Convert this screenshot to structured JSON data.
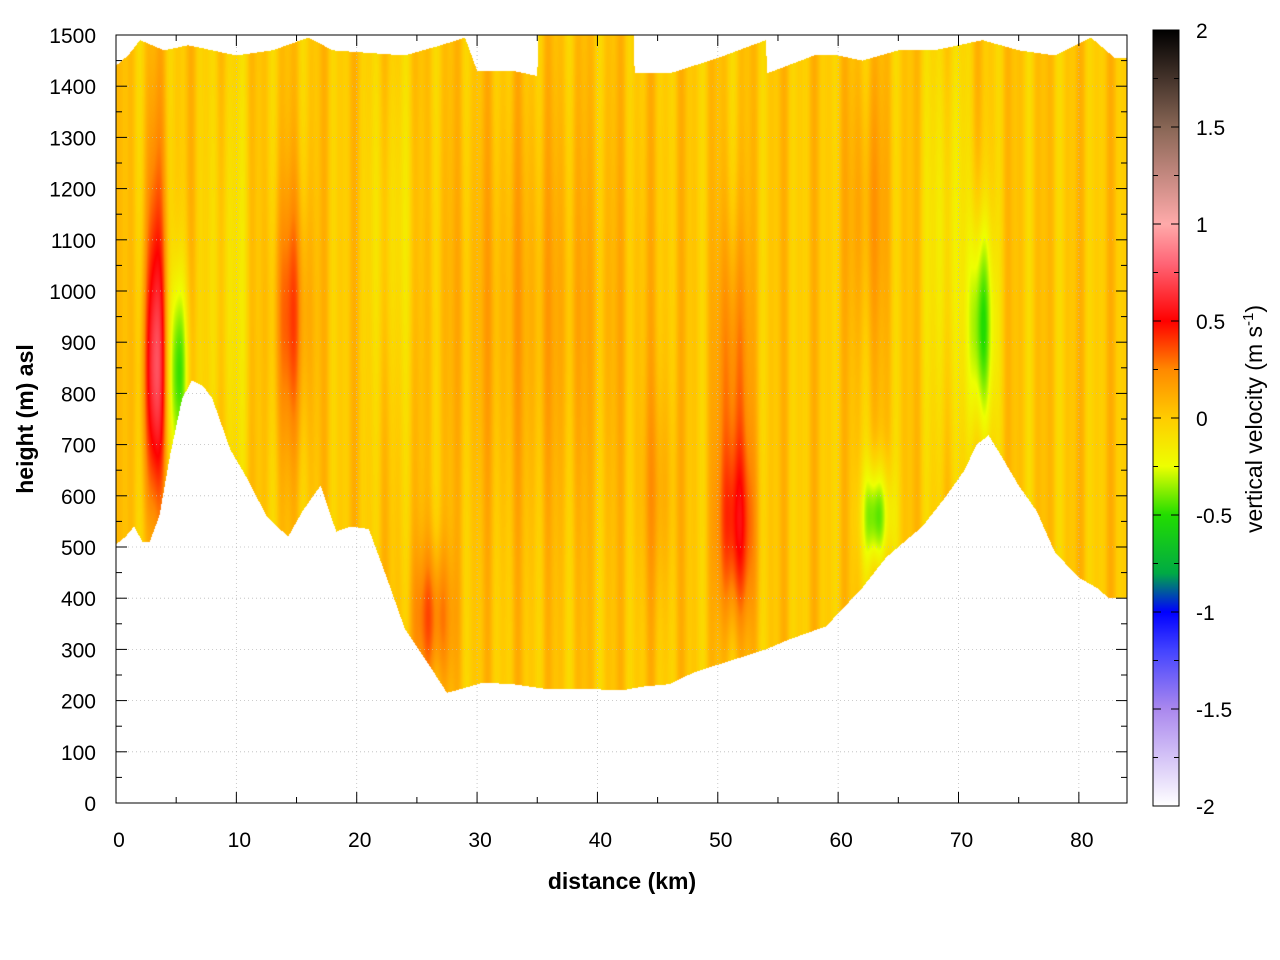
{
  "chart_data": {
    "type": "heatmap",
    "title": "",
    "xlabel": "distance (km)",
    "ylabel": "height (m) asl",
    "xlim": [
      0,
      84
    ],
    "ylim": [
      0,
      1500
    ],
    "x_ticks": [
      "0",
      "10",
      "20",
      "30",
      "40",
      "50",
      "60",
      "70",
      "80"
    ],
    "y_ticks": [
      "0",
      "100",
      "200",
      "300",
      "400",
      "500",
      "600",
      "700",
      "800",
      "900",
      "1000",
      "1100",
      "1200",
      "1300",
      "1400",
      "1500"
    ],
    "grid": true,
    "colorbar": {
      "label_main": "vertical velocity (m s",
      "label_sup": "-1",
      "label_close": ")",
      "range": [
        -2,
        2
      ],
      "ticks": [
        "-2",
        "-1.5",
        "-1",
        "-0.5",
        "0",
        "0.5",
        "1",
        "1.5",
        "2"
      ],
      "palette": [
        {
          "value": -2.0,
          "color": "#ffffff"
        },
        {
          "value": -1.5,
          "color": "#aa88ee"
        },
        {
          "value": -1.2,
          "color": "#4444ff"
        },
        {
          "value": -1.0,
          "color": "#0000ff"
        },
        {
          "value": -0.8,
          "color": "#00aa44"
        },
        {
          "value": -0.5,
          "color": "#22dd00"
        },
        {
          "value": -0.25,
          "color": "#eeff00"
        },
        {
          "value": 0.0,
          "color": "#ffcc00"
        },
        {
          "value": 0.25,
          "color": "#ff8800"
        },
        {
          "value": 0.5,
          "color": "#ff0000"
        },
        {
          "value": 0.8,
          "color": "#ff6677"
        },
        {
          "value": 1.0,
          "color": "#ffaaaa"
        },
        {
          "value": 1.5,
          "color": "#886655"
        },
        {
          "value": 2.0,
          "color": "#000000"
        }
      ]
    },
    "terrain_height_m": [
      {
        "x": 0,
        "h": 505
      },
      {
        "x": 0.8,
        "h": 520
      },
      {
        "x": 1.5,
        "h": 540
      },
      {
        "x": 2.2,
        "h": 510
      },
      {
        "x": 2.8,
        "h": 510
      },
      {
        "x": 3.6,
        "h": 560
      },
      {
        "x": 4.5,
        "h": 680
      },
      {
        "x": 5.5,
        "h": 790
      },
      {
        "x": 6.3,
        "h": 825
      },
      {
        "x": 7.2,
        "h": 815
      },
      {
        "x": 8.0,
        "h": 790
      },
      {
        "x": 9.5,
        "h": 690
      },
      {
        "x": 11,
        "h": 630
      },
      {
        "x": 12.5,
        "h": 560
      },
      {
        "x": 14.3,
        "h": 520
      },
      {
        "x": 15.5,
        "h": 570
      },
      {
        "x": 17,
        "h": 620
      },
      {
        "x": 18.3,
        "h": 530
      },
      {
        "x": 19.5,
        "h": 540
      },
      {
        "x": 21,
        "h": 535
      },
      {
        "x": 22.5,
        "h": 440
      },
      {
        "x": 24,
        "h": 340
      },
      {
        "x": 26,
        "h": 270
      },
      {
        "x": 27.5,
        "h": 215
      },
      {
        "x": 29,
        "h": 225
      },
      {
        "x": 30.5,
        "h": 235
      },
      {
        "x": 33,
        "h": 232
      },
      {
        "x": 36,
        "h": 222
      },
      {
        "x": 40,
        "h": 222
      },
      {
        "x": 42,
        "h": 220
      },
      {
        "x": 44,
        "h": 228
      },
      {
        "x": 46,
        "h": 232
      },
      {
        "x": 48,
        "h": 255
      },
      {
        "x": 50,
        "h": 270
      },
      {
        "x": 52,
        "h": 285
      },
      {
        "x": 54,
        "h": 300
      },
      {
        "x": 56,
        "h": 320
      },
      {
        "x": 59,
        "h": 345
      },
      {
        "x": 62,
        "h": 420
      },
      {
        "x": 64,
        "h": 480
      },
      {
        "x": 65.5,
        "h": 510
      },
      {
        "x": 67,
        "h": 540
      },
      {
        "x": 69,
        "h": 600
      },
      {
        "x": 70.5,
        "h": 650
      },
      {
        "x": 71.5,
        "h": 700
      },
      {
        "x": 72.5,
        "h": 718
      },
      {
        "x": 73.5,
        "h": 680
      },
      {
        "x": 75,
        "h": 620
      },
      {
        "x": 76.5,
        "h": 570
      },
      {
        "x": 78,
        "h": 490
      },
      {
        "x": 80,
        "h": 440
      },
      {
        "x": 81.5,
        "h": 420
      },
      {
        "x": 82.5,
        "h": 400
      },
      {
        "x": 84,
        "h": 400
      }
    ],
    "data_top_height_m": [
      {
        "x": 0,
        "h": 1440
      },
      {
        "x": 1,
        "h": 1460
      },
      {
        "x": 2,
        "h": 1490
      },
      {
        "x": 4,
        "h": 1470
      },
      {
        "x": 6,
        "h": 1480
      },
      {
        "x": 8,
        "h": 1470
      },
      {
        "x": 10,
        "h": 1460
      },
      {
        "x": 13,
        "h": 1470
      },
      {
        "x": 16,
        "h": 1495
      },
      {
        "x": 18,
        "h": 1470
      },
      {
        "x": 21,
        "h": 1465
      },
      {
        "x": 24,
        "h": 1460
      },
      {
        "x": 27,
        "h": 1480
      },
      {
        "x": 29,
        "h": 1495
      },
      {
        "x": 30,
        "h": 1430
      },
      {
        "x": 33,
        "h": 1430
      },
      {
        "x": 35,
        "h": 1420
      },
      {
        "x": 35.1,
        "h": 1500
      },
      {
        "x": 43,
        "h": 1500
      },
      {
        "x": 43.1,
        "h": 1425
      },
      {
        "x": 46,
        "h": 1425
      },
      {
        "x": 50,
        "h": 1455
      },
      {
        "x": 54,
        "h": 1490
      },
      {
        "x": 54.1,
        "h": 1425
      },
      {
        "x": 58,
        "h": 1460
      },
      {
        "x": 60,
        "h": 1460
      },
      {
        "x": 62,
        "h": 1450
      },
      {
        "x": 65,
        "h": 1470
      },
      {
        "x": 68,
        "h": 1470
      },
      {
        "x": 72,
        "h": 1490
      },
      {
        "x": 75,
        "h": 1470
      },
      {
        "x": 78,
        "h": 1460
      },
      {
        "x": 81,
        "h": 1495
      },
      {
        "x": 83,
        "h": 1455
      },
      {
        "x": 84,
        "h": 1455
      }
    ],
    "anomalies": [
      {
        "x": 3.3,
        "h": 820,
        "sx": 0.7,
        "sh": 170,
        "w": 0.5
      },
      {
        "x": 3.3,
        "h": 1050,
        "sx": 0.6,
        "sh": 250,
        "w": 0.28
      },
      {
        "x": 5.2,
        "h": 840,
        "sx": 0.6,
        "sh": 140,
        "w": -0.5
      },
      {
        "x": 14.6,
        "h": 950,
        "sx": 1.0,
        "sh": 180,
        "w": 0.32
      },
      {
        "x": 26.3,
        "h": 360,
        "sx": 1.1,
        "sh": 100,
        "w": 0.33
      },
      {
        "x": 35,
        "h": 950,
        "sx": 6,
        "sh": 300,
        "w": 0.1
      },
      {
        "x": 51.5,
        "h": 530,
        "sx": 1.0,
        "sh": 130,
        "w": 0.45
      },
      {
        "x": 51.3,
        "h": 850,
        "sx": 0.9,
        "sh": 200,
        "w": 0.28
      },
      {
        "x": 63.2,
        "h": 560,
        "sx": 0.8,
        "sh": 70,
        "w": -0.5
      },
      {
        "x": 71.9,
        "h": 930,
        "sx": 0.7,
        "sh": 150,
        "w": -0.55
      },
      {
        "x": 62.5,
        "h": 1150,
        "sx": 1.2,
        "sh": 200,
        "w": 0.15
      },
      {
        "x": 23,
        "h": 1100,
        "sx": 1.5,
        "sh": 250,
        "w": -0.12
      },
      {
        "x": 69,
        "h": 1100,
        "sx": 1.2,
        "sh": 300,
        "w": -0.18
      },
      {
        "x": 9.5,
        "h": 1000,
        "sx": 1.2,
        "sh": 350,
        "w": -0.12
      },
      {
        "x": 45,
        "h": 600,
        "sx": 1.0,
        "sh": 150,
        "w": 0.12
      }
    ],
    "background_w": 0.02
  }
}
